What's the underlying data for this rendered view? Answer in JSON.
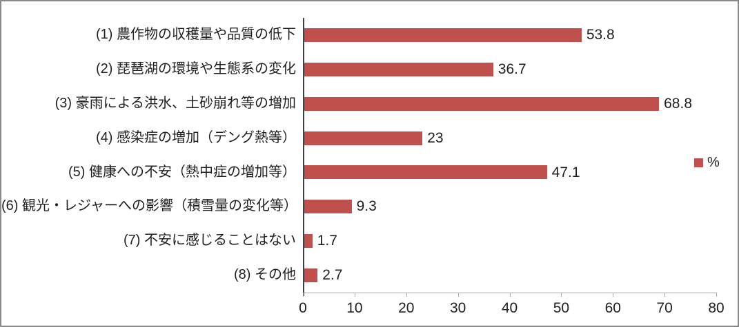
{
  "chart_data": {
    "type": "bar",
    "orientation": "horizontal",
    "title": "",
    "categories": [
      "(1) 農作物の収穫量や品質の低下",
      "(2) 琵琶湖の環境や生態系の変化",
      "(3) 豪雨による洪水、土砂崩れ等の増加",
      "(4) 感染症の増加（デング熱等）",
      "(5) 健康への不安（熱中症の増加等）",
      "(6) 観光・レジャーへの影響（積雪量の変化等）",
      "(7) 不安に感じることはない",
      "(8) その他"
    ],
    "values": [
      53.8,
      36.7,
      68.8,
      23,
      47.1,
      9.3,
      1.7,
      2.7
    ],
    "value_labels": [
      "53.8",
      "36.7",
      "68.8",
      "23",
      "47.1",
      "9.3",
      "1.7",
      "2.7"
    ],
    "legend": [
      {
        "name": "%",
        "color": "#C0504D"
      }
    ],
    "legend_position": "right",
    "xlim": [
      0,
      80
    ],
    "xticks": [
      "0",
      "10",
      "20",
      "30",
      "40",
      "50",
      "60",
      "70",
      "80"
    ],
    "grid": false,
    "data_labels_shown": true
  },
  "style": {
    "bar_color": "#C0504D",
    "x_axis_color": "#A6A6A6",
    "tick_color": "#A6A6A6",
    "y_axis_color": "#404040",
    "text_color": "#1f1f1f",
    "border_color": "#898989",
    "background": "#FFFFFF"
  }
}
